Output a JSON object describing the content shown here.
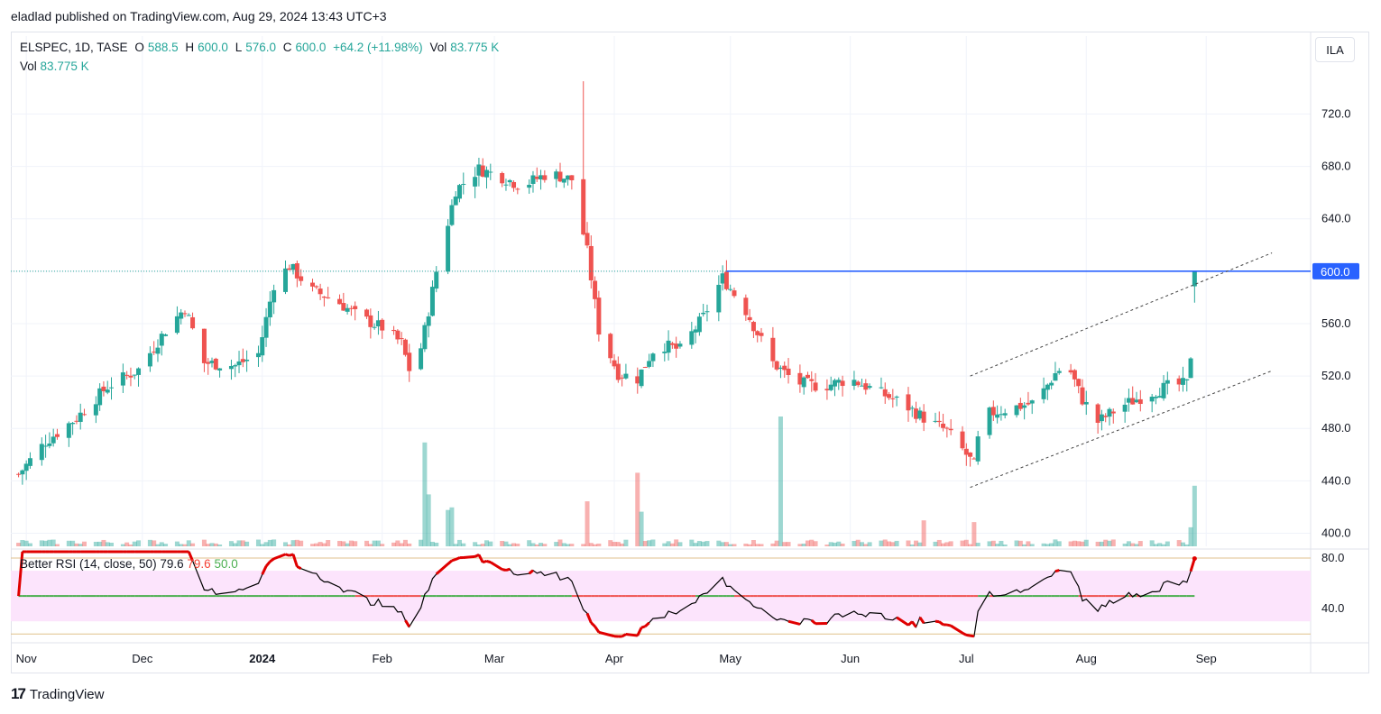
{
  "header": {
    "published_line": "eladlad published on TradingView.com, Aug 29, 2024 13:43 UTC+3"
  },
  "legend": {
    "symbol": "ELSPEC, 1D, TASE",
    "o_label": "O",
    "o_value": "588.5",
    "h_label": "H",
    "h_value": "600.0",
    "l_label": "L",
    "l_value": "576.0",
    "c_label": "C",
    "c_value": "600.0",
    "change": "+64.2 (+11.98%)",
    "vol_label": "Vol",
    "vol_value": "83.775 K",
    "vol2_label": "Vol",
    "vol2_value": "83.775 K"
  },
  "rsi_legend": {
    "name": "Better RSI (14, close, 50)",
    "v1": "79.6",
    "v2": "79.6",
    "v3": "50.0"
  },
  "currency_button": "ILA",
  "brand": {
    "icon": "tradingview-logo-icon",
    "name": "TradingView"
  },
  "colors": {
    "up": "#26a69a",
    "down": "#ef5350",
    "level": "#2962ff",
    "rsi_band": "#fce4fc",
    "rsi_neutral": "#4caf50"
  },
  "chart_data": {
    "type": "candlestick",
    "symbol": "ELSPEC",
    "timeframe": "1D",
    "exchange": "TASE",
    "price_axis": {
      "ticks": [
        "720.0",
        "680.0",
        "640.0",
        "600.0",
        "560.0",
        "520.0",
        "480.0",
        "440.0",
        "400.0"
      ],
      "range": [
        390,
        752
      ],
      "last_price_label": "600.0"
    },
    "time_axis": {
      "labels": [
        "Nov",
        "Dec",
        "2024",
        "Feb",
        "Mar",
        "Apr",
        "May",
        "Jun",
        "Jul",
        "Aug",
        "Sep"
      ]
    },
    "price_anchors": [
      [
        "Oct 30",
        445
      ],
      [
        "Nov 6",
        470
      ],
      [
        "Nov 14",
        488
      ],
      [
        "Nov 22",
        512
      ],
      [
        "Nov 30",
        525
      ],
      [
        "Dec 7",
        555
      ],
      [
        "Dec 12",
        572
      ],
      [
        "Dec 17",
        530
      ],
      [
        "Dec 25",
        528
      ],
      [
        "Dec 31",
        537
      ],
      [
        "Jan 4",
        590
      ],
      [
        "Jan 8",
        604
      ],
      [
        "Jan 14",
        585
      ],
      [
        "Jan 20",
        578
      ],
      [
        "Jan 26",
        565
      ],
      [
        "Feb 1",
        557
      ],
      [
        "Feb 6",
        545
      ],
      [
        "Feb 9",
        515
      ],
      [
        "Feb 12",
        555
      ],
      [
        "Feb 15",
        600
      ],
      [
        "Feb 20",
        662
      ],
      [
        "Feb 26",
        678
      ],
      [
        "Mar 3",
        672
      ],
      [
        "Mar 8",
        665
      ],
      [
        "Mar 15",
        675
      ],
      [
        "Mar 21",
        670
      ],
      [
        "Mar 25",
        615
      ],
      [
        "Mar 28",
        555
      ],
      [
        "Apr 2",
        522
      ],
      [
        "Apr 7",
        518
      ],
      [
        "Apr 12",
        545
      ],
      [
        "Apr 18",
        540
      ],
      [
        "Apr 24",
        565
      ],
      [
        "Apr 29",
        595
      ],
      [
        "May 5",
        570
      ],
      [
        "May 12",
        530
      ],
      [
        "May 18",
        515
      ],
      [
        "May 25",
        512
      ],
      [
        "Jun 1",
        518
      ],
      [
        "Jun 8",
        508
      ],
      [
        "Jun 14",
        500
      ],
      [
        "Jun 20",
        488
      ],
      [
        "Jun 26",
        478
      ],
      [
        "Jul 1",
        460
      ],
      [
        "Jul 3",
        452
      ],
      [
        "Jul 5",
        490
      ],
      [
        "Jul 12",
        495
      ],
      [
        "Jul 19",
        500
      ],
      [
        "Jul 24",
        522
      ],
      [
        "Jul 27",
        530
      ],
      [
        "Jul 31",
        502
      ],
      [
        "Aug 4",
        485
      ],
      [
        "Aug 10",
        497
      ],
      [
        "Aug 16",
        505
      ],
      [
        "Aug 22",
        512
      ],
      [
        "Aug 27",
        514
      ],
      [
        "Aug 28",
        536
      ],
      [
        "Aug 29",
        600
      ]
    ],
    "last_candle": {
      "date": "Aug 29, 2024",
      "open": 588.5,
      "high": 600.0,
      "low": 576.0,
      "close": 600.0
    },
    "horizontal_level": {
      "price": 600.0,
      "from": "Apr 30",
      "to": "Sep 2"
    },
    "trend_channel": {
      "lower": {
        "from": [
          "Jul 2",
          435
        ],
        "to": [
          "Sep 18",
          524
        ]
      },
      "upper": {
        "from": [
          "Jul 2",
          520
        ],
        "to": [
          "Sep 18",
          614
        ]
      }
    },
    "volume": {
      "last_value": "83.775 K"
    },
    "rsi": {
      "name": "Better RSI (14, close, 50)",
      "last": 79.6,
      "midline": 50.0,
      "overbought": 70,
      "oversold": 30,
      "ticks": [
        "80.0",
        "40.0"
      ],
      "range": [
        18,
        85
      ]
    }
  }
}
